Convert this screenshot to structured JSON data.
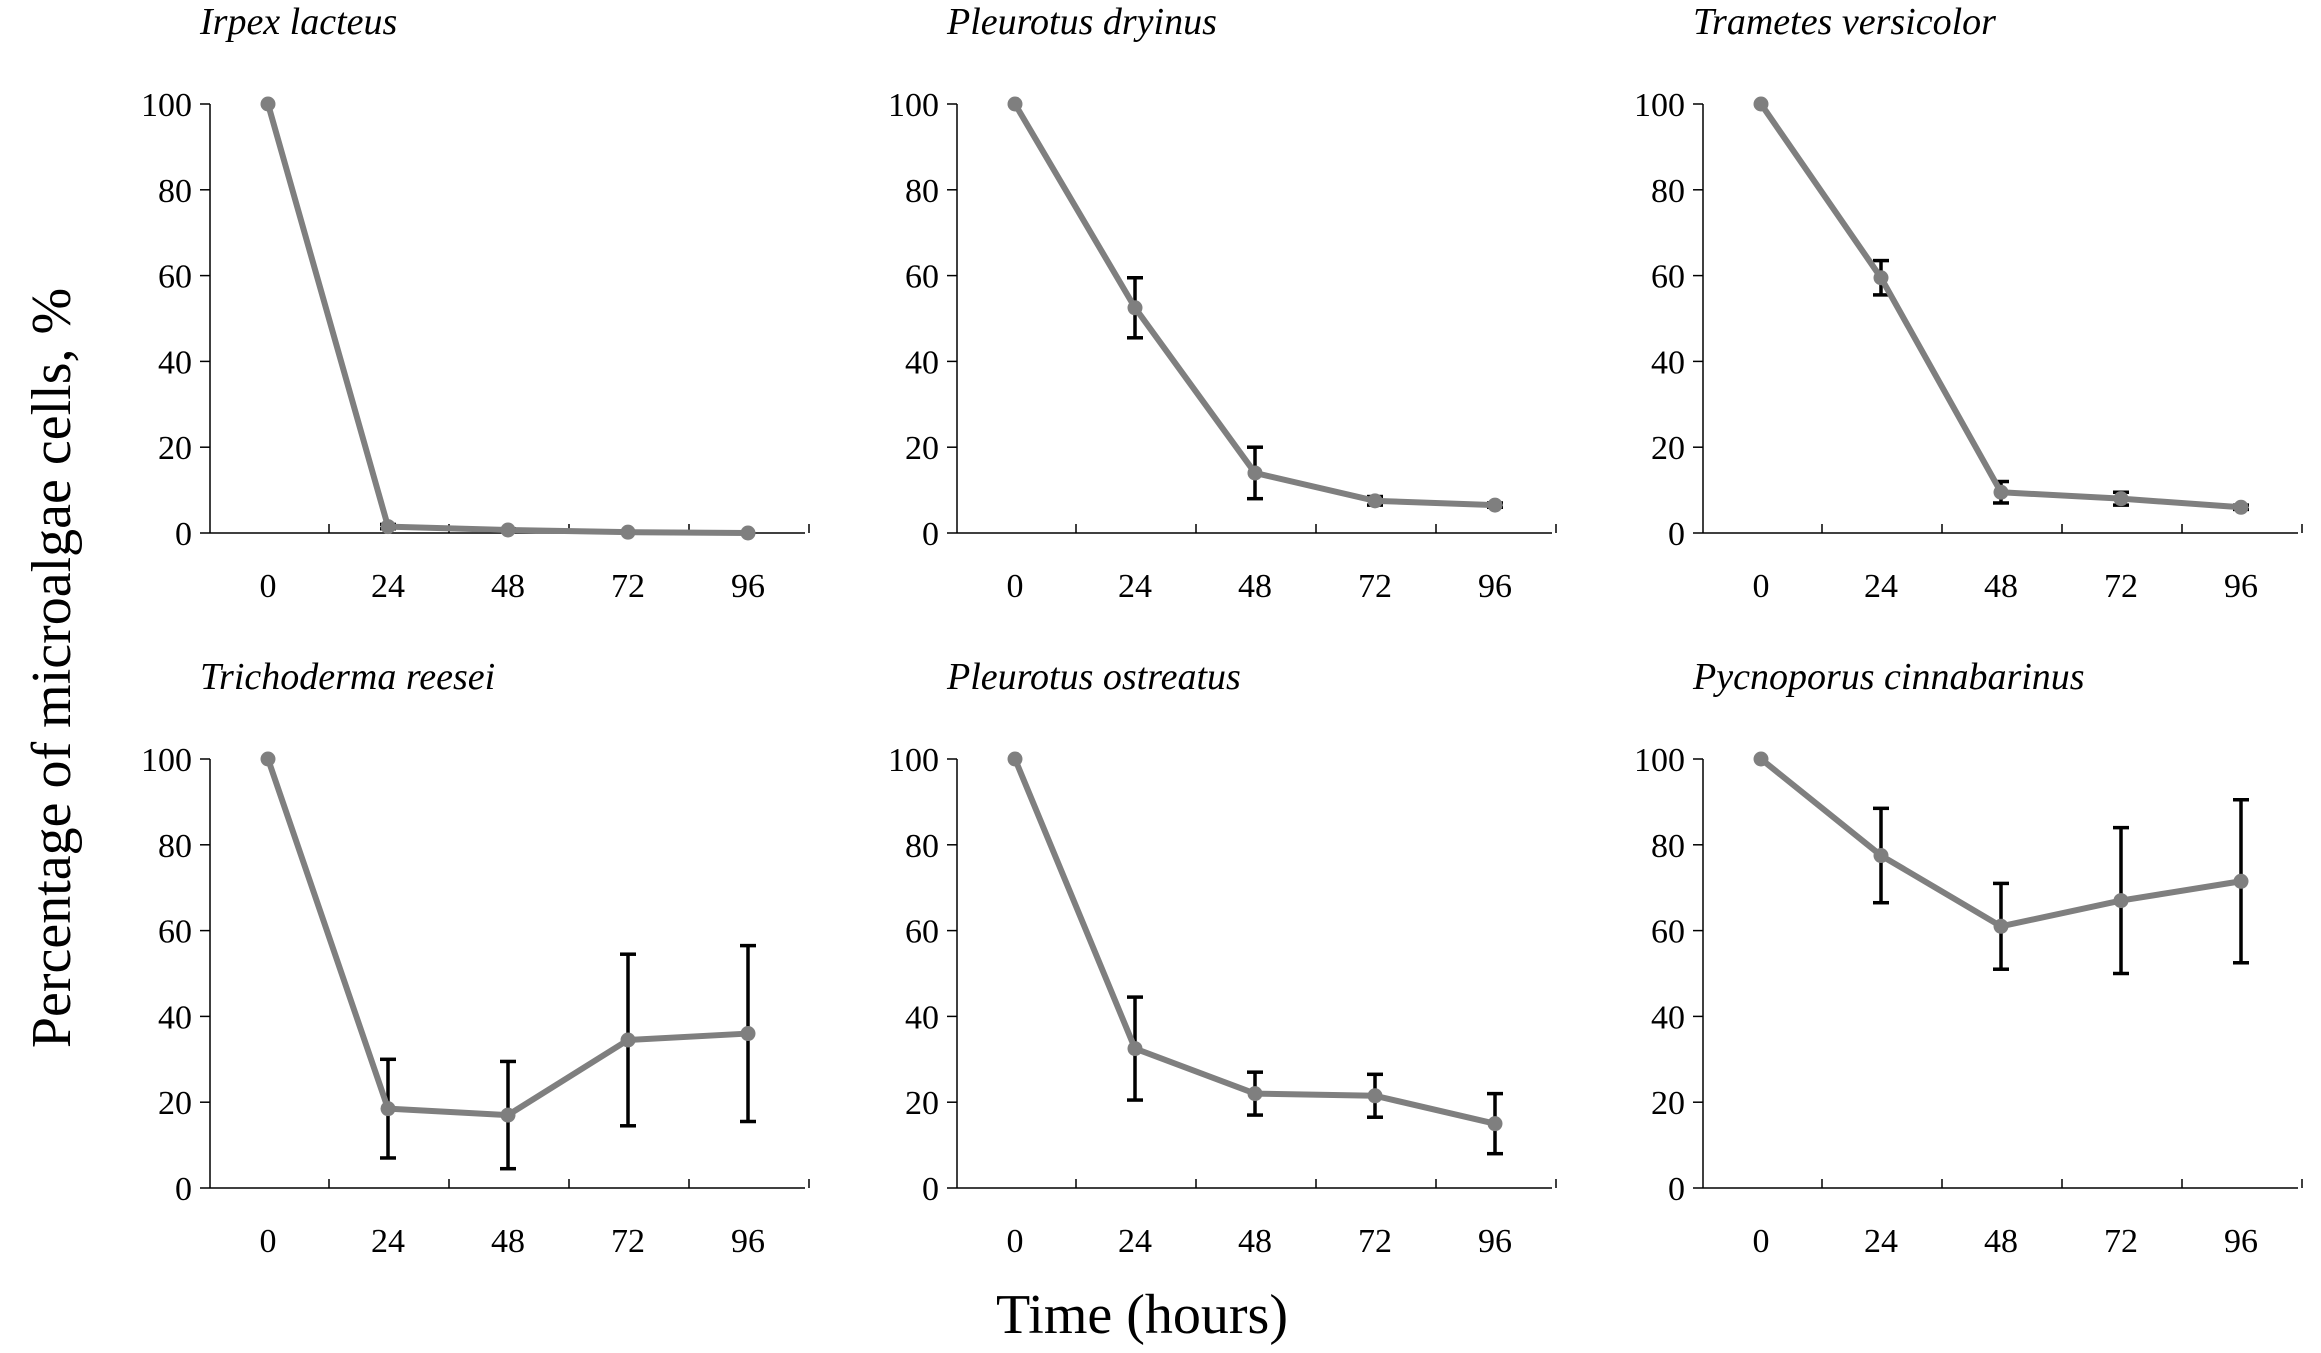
{
  "figure": {
    "ylabel": "Percentage of microalgae cells, %",
    "xlabel": "Time (hours)"
  },
  "colors": {
    "line": "#7f7f7f",
    "error": "#000000",
    "axis": "#000000"
  },
  "chart_data": [
    {
      "type": "line",
      "title": "Irpex lacteus",
      "x": [
        0,
        24,
        48,
        72,
        96
      ],
      "values": [
        100,
        1.5,
        0.7,
        0.2,
        0
      ],
      "errors": [
        0,
        0.5,
        0.3,
        0.1,
        0
      ],
      "ylim": [
        0,
        100
      ],
      "yticks": [
        "0",
        "20",
        "40",
        "60",
        "80",
        "100"
      ],
      "xticks": [
        "0",
        "24",
        "48",
        "72",
        "96"
      ],
      "xlabel": "Time (hours)",
      "ylabel": "Percentage of microalgae cells, %",
      "grid": false
    },
    {
      "type": "line",
      "title": "Pleurotus dryinus",
      "x": [
        0,
        24,
        48,
        72,
        96
      ],
      "values": [
        100,
        52.5,
        14,
        7.5,
        6.5
      ],
      "errors": [
        0,
        7,
        6,
        1,
        0.5
      ],
      "ylim": [
        0,
        100
      ],
      "yticks": [
        "0",
        "20",
        "40",
        "60",
        "80",
        "100"
      ],
      "xticks": [
        "0",
        "24",
        "48",
        "72",
        "96"
      ],
      "xlabel": "Time (hours)",
      "ylabel": "Percentage of microalgae cells, %",
      "grid": false
    },
    {
      "type": "line",
      "title": "Trametes versicolor",
      "x": [
        0,
        24,
        48,
        72,
        96
      ],
      "values": [
        100,
        59.5,
        9.5,
        8,
        6
      ],
      "errors": [
        0,
        4,
        2.5,
        1.5,
        0.5
      ],
      "ylim": [
        0,
        100
      ],
      "yticks": [
        "0",
        "20",
        "40",
        "60",
        "80",
        "100"
      ],
      "xticks": [
        "0",
        "24",
        "48",
        "72",
        "96"
      ],
      "xlabel": "Time (hours)",
      "ylabel": "Percentage of microalgae cells, %",
      "grid": false
    },
    {
      "type": "line",
      "title": "Trichoderma reesei",
      "x": [
        0,
        24,
        48,
        72,
        96
      ],
      "values": [
        100,
        18.5,
        17,
        34.5,
        36
      ],
      "errors": [
        0,
        11.5,
        12.5,
        20,
        20.5
      ],
      "ylim": [
        0,
        100
      ],
      "yticks": [
        "0",
        "20",
        "40",
        "60",
        "80",
        "100"
      ],
      "xticks": [
        "0",
        "24",
        "48",
        "72",
        "96"
      ],
      "xlabel": "Time (hours)",
      "ylabel": "Percentage of microalgae cells, %",
      "grid": false
    },
    {
      "type": "line",
      "title": "Pleurotus ostreatus",
      "x": [
        0,
        24,
        48,
        72,
        96
      ],
      "values": [
        100,
        32.5,
        22,
        21.5,
        15
      ],
      "errors": [
        0,
        12,
        5,
        5,
        7
      ],
      "ylim": [
        0,
        100
      ],
      "yticks": [
        "0",
        "20",
        "40",
        "60",
        "80",
        "100"
      ],
      "xticks": [
        "0",
        "24",
        "48",
        "72",
        "96"
      ],
      "xlabel": "Time (hours)",
      "ylabel": "Percentage of microalgae cells, %",
      "grid": false
    },
    {
      "type": "line",
      "title": "Pycnoporus cinnabarinus",
      "x": [
        0,
        24,
        48,
        72,
        96
      ],
      "values": [
        100,
        77.5,
        61,
        67,
        71.5
      ],
      "errors": [
        0,
        11,
        10,
        17,
        19
      ],
      "ylim": [
        0,
        100
      ],
      "yticks": [
        "0",
        "20",
        "40",
        "60",
        "80",
        "100"
      ],
      "xticks": [
        "0",
        "24",
        "48",
        "72",
        "96"
      ],
      "xlabel": "Time (hours)",
      "ylabel": "Percentage of microalgae cells, %",
      "grid": false
    }
  ]
}
